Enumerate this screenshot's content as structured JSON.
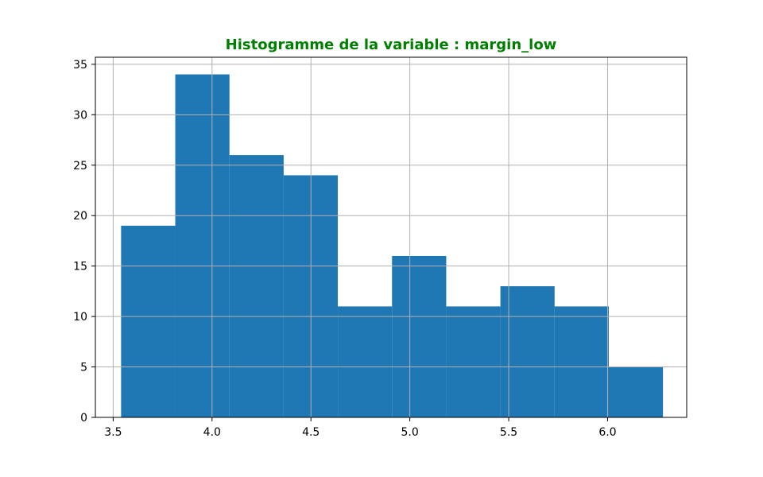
{
  "chart_data": {
    "type": "bar",
    "title": "Histogramme de la variable : margin_low",
    "title_color": "#008000",
    "bar_color": "#1f77b4",
    "grid": true,
    "xlim": [
      3.41,
      6.4
    ],
    "ylim": [
      0,
      35.7
    ],
    "x_ticks": [
      3.5,
      4.0,
      4.5,
      5.0,
      5.5,
      6.0
    ],
    "x_tick_labels": [
      "3.5",
      "4.0",
      "4.5",
      "5.0",
      "5.5",
      "6.0"
    ],
    "y_ticks": [
      0,
      5,
      10,
      15,
      20,
      25,
      30,
      35
    ],
    "y_tick_labels": [
      "0",
      "5",
      "10",
      "15",
      "20",
      "25",
      "30",
      "35"
    ],
    "bin_edges": [
      3.54,
      3.814,
      4.088,
      4.362,
      4.636,
      4.91,
      5.184,
      5.458,
      5.732,
      6.006,
      6.28
    ],
    "values": [
      19,
      34,
      26,
      24,
      11,
      16,
      11,
      13,
      11,
      5
    ]
  }
}
